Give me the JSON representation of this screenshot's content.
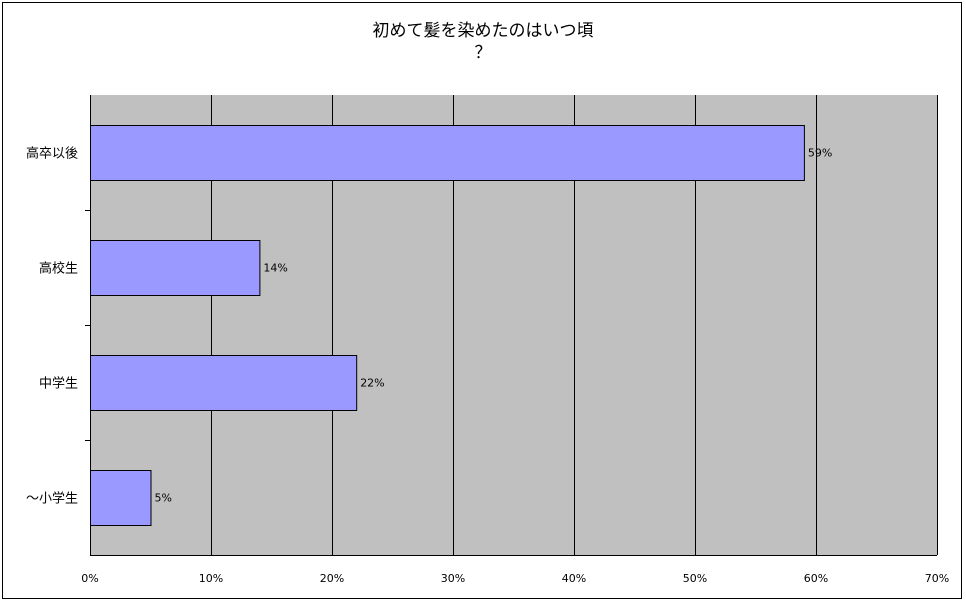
{
  "chart_data": {
    "type": "bar",
    "orientation": "horizontal",
    "title": "初めて髪を染めたのはいつ頃\n？",
    "categories": [
      "高卒以後",
      "高校生",
      "中学生",
      "〜小学生"
    ],
    "values": [
      59,
      14,
      22,
      5
    ],
    "data_labels": [
      "59%",
      "14%",
      "22%",
      "5%"
    ],
    "xlim": [
      0,
      70
    ],
    "xticks": [
      0,
      10,
      20,
      30,
      40,
      50,
      60,
      70
    ],
    "xtick_labels": [
      "0%",
      "10%",
      "20%",
      "30%",
      "40%",
      "50%",
      "60%",
      "70%"
    ],
    "grid": true,
    "colors": {
      "bar_fill": "#9999ff",
      "bar_stroke": "#000000",
      "plot_background": "#c0c0c0",
      "gridline": "#000000"
    }
  }
}
